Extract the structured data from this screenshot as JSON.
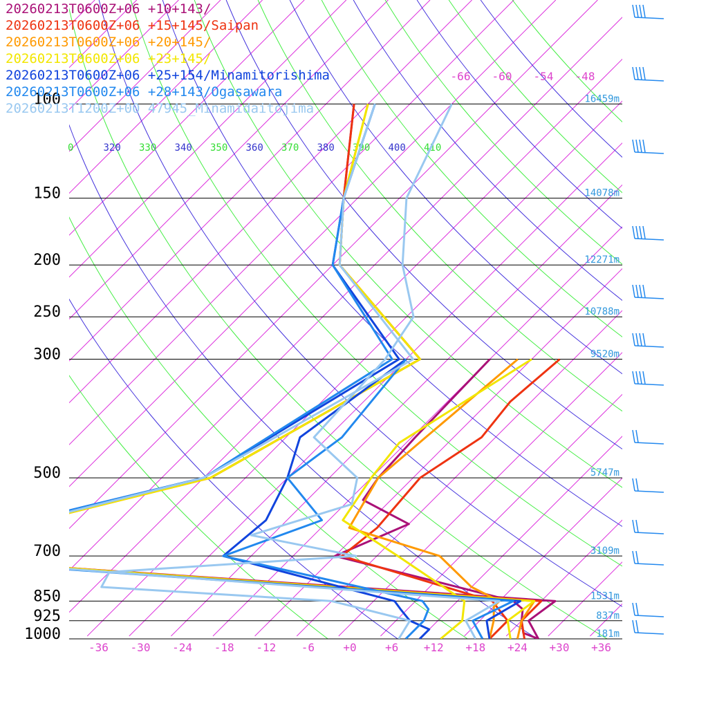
{
  "legend": [
    {
      "label": "20260213T0600Z+06 +10+143/",
      "color": "#aa1177"
    },
    {
      "label": "20260213T0600Z+06 +15+145/Saipan",
      "color": "#ee3311"
    },
    {
      "label": "20260213T0600Z+06 +20+145/",
      "color": "#ff9900"
    },
    {
      "label": "20260213T0600Z+06 +23+145/",
      "color": "#f2e600"
    },
    {
      "label": "20260213T0600Z+06 +25+154/Minamitorishima",
      "color": "#1144dd"
    },
    {
      "label": "20260213T0600Z+06 +28+143/Ogasawara",
      "color": "#2288ee"
    },
    {
      "label": "20260213T1200Z+00 47945_Minamidaitojima",
      "color": "#99c8f0"
    }
  ],
  "chart_data": {
    "type": "line",
    "chart_kind": "skew-T log-P sounding",
    "pressure_levels": [
      100,
      150,
      200,
      250,
      300,
      500,
      700,
      850,
      925,
      1000
    ],
    "pressure_labels": [
      "100",
      "150",
      "200",
      "250",
      "300",
      "500",
      "700",
      "850",
      "925",
      "1000"
    ],
    "height_labels": [
      "16459m",
      "14078m",
      "12271m",
      "10788m",
      "9520m",
      "5747m",
      "3109m",
      "1531m",
      "837m",
      "181m"
    ],
    "temperature_ticks": [
      "-36",
      "-30",
      "-24",
      "-18",
      "-12",
      "-6",
      "+0",
      "+6",
      "+12",
      "+18",
      "+24",
      "+30",
      "+36"
    ],
    "top_temperature_ticks": [
      "-66",
      "-60",
      "-54",
      "-48"
    ],
    "theta_labels": [
      "0",
      "320",
      "330",
      "340",
      "350",
      "360",
      "370",
      "380",
      "390",
      "400",
      "410"
    ],
    "xlim": [
      -40,
      40
    ],
    "ylim": [
      1000,
      100
    ],
    "series": [
      {
        "name": "20260213T0600Z+06 +10+143/",
        "color": "#aa1177",
        "temperature": [
          [
            1000,
            27
          ],
          [
            925,
            23
          ],
          [
            850,
            24
          ],
          [
            700,
            -77.5
          ],
          [
            500,
            -43
          ],
          [
            300,
            -30
          ],
          [
            200,
            -55
          ],
          [
            150,
            -64
          ],
          [
            100,
            -76
          ]
        ],
        "dewpoint": [
          [
            1000,
            27
          ],
          [
            975,
            24
          ],
          [
            925,
            22
          ],
          [
            880,
            20.5
          ],
          [
            850,
            18
          ],
          [
            700,
            -14
          ],
          [
            610,
            -8
          ],
          [
            550,
            -18
          ],
          [
            500,
            -19
          ],
          [
            420,
            -19.5
          ],
          [
            300,
            -20
          ]
        ]
      },
      {
        "name": "20260213T0600Z+06 +15+145/Saipan",
        "color": "#ee3311",
        "temperature": [
          [
            1000,
            25
          ],
          [
            925,
            22
          ],
          [
            850,
            22
          ],
          [
            700,
            -77
          ],
          [
            500,
            -43
          ],
          [
            300,
            -30
          ],
          [
            200,
            -55
          ],
          [
            150,
            -64
          ],
          [
            100,
            -76
          ]
        ],
        "dewpoint": [
          [
            1000,
            20
          ],
          [
            960,
            20
          ],
          [
            925,
            20
          ],
          [
            850,
            15
          ],
          [
            700,
            -13
          ],
          [
            620,
            -12
          ],
          [
            500,
            -13
          ],
          [
            420,
            -10
          ],
          [
            360,
            -11
          ],
          [
            300,
            -10
          ]
        ]
      },
      {
        "name": "20260213T0600Z+06 +20+145/",
        "color": "#ff9900",
        "temperature": [
          [
            1000,
            24
          ],
          [
            925,
            22
          ],
          [
            850,
            21
          ],
          [
            700,
            -77
          ],
          [
            500,
            -43
          ],
          [
            300,
            -30
          ],
          [
            200,
            -55
          ],
          [
            150,
            -64
          ],
          [
            100,
            -74
          ]
        ],
        "dewpoint": [
          [
            1000,
            20
          ],
          [
            925,
            18
          ],
          [
            870,
            16
          ],
          [
            850,
            16
          ],
          [
            800,
            10
          ],
          [
            700,
            1
          ],
          [
            620,
            -16
          ],
          [
            500,
            -19
          ],
          [
            420,
            -18
          ],
          [
            300,
            -16
          ]
        ]
      },
      {
        "name": "20260213T0600Z+06 +23+145/",
        "color": "#f2e600",
        "temperature": [
          [
            1000,
            23
          ],
          [
            925,
            20
          ],
          [
            850,
            21
          ],
          [
            700,
            -77
          ],
          [
            500,
            -43
          ],
          [
            300,
            -30
          ],
          [
            200,
            -55
          ],
          [
            150,
            -64
          ],
          [
            100,
            -74
          ]
        ],
        "dewpoint": [
          [
            1000,
            13
          ],
          [
            925,
            13.5
          ],
          [
            850,
            11
          ],
          [
            700,
            -5
          ],
          [
            600,
            -18
          ],
          [
            500,
            -20
          ],
          [
            430,
            -21
          ],
          [
            300,
            -14
          ]
        ]
      },
      {
        "name": "20260213T0600Z+06 +25+154/Minamitorishima",
        "color": "#1144dd",
        "temperature": [
          [
            1000,
            20
          ],
          [
            925,
            17
          ],
          [
            850,
            19
          ],
          [
            700,
            -79
          ],
          [
            500,
            -44
          ],
          [
            300,
            -33
          ],
          [
            200,
            -56
          ],
          [
            150,
            -64
          ],
          [
            100,
            -73
          ]
        ],
        "dewpoint": [
          [
            1000,
            10
          ],
          [
            960,
            10
          ],
          [
            925,
            6
          ],
          [
            880,
            3
          ],
          [
            850,
            1
          ],
          [
            700,
            -30
          ],
          [
            600,
            -29
          ],
          [
            500,
            -32
          ],
          [
            420,
            -36
          ],
          [
            300,
            -32
          ]
        ]
      },
      {
        "name": "20260213T0600Z+06 +28+143/Ogasawara",
        "color": "#2288ee",
        "temperature": [
          [
            1000,
            19
          ],
          [
            925,
            15
          ],
          [
            850,
            18
          ],
          [
            700,
            -79
          ],
          [
            500,
            -44
          ],
          [
            300,
            -34
          ],
          [
            200,
            -56
          ],
          [
            150,
            -64
          ],
          [
            100,
            -73
          ]
        ],
        "dewpoint": [
          [
            1000,
            8
          ],
          [
            925,
            8
          ],
          [
            880,
            7
          ],
          [
            850,
            5
          ],
          [
            700,
            -30
          ],
          [
            600,
            -21
          ],
          [
            500,
            -32
          ],
          [
            420,
            -30
          ],
          [
            300,
            -32
          ]
        ]
      },
      {
        "name": "20260213T1200Z+00 47945_Minamidaitojima",
        "color": "#99c8f0",
        "temperature": [
          [
            1000,
            18
          ],
          [
            925,
            14
          ],
          [
            850,
            16
          ],
          [
            700,
            -77
          ],
          [
            500,
            -44
          ],
          [
            300,
            -31
          ],
          [
            200,
            -55
          ],
          [
            150,
            -64
          ],
          [
            100,
            -73
          ]
        ],
        "dewpoint": [
          [
            1000,
            7
          ],
          [
            925,
            6
          ],
          [
            850,
            -8
          ],
          [
            800,
            -43
          ],
          [
            750,
            -44
          ],
          [
            700,
            -11
          ],
          [
            640,
            -29
          ],
          [
            560,
            -19
          ],
          [
            500,
            -22
          ],
          [
            420,
            -34
          ],
          [
            300,
            -35
          ],
          [
            250,
            -37
          ],
          [
            200,
            -46
          ],
          [
            150,
            -55
          ],
          [
            100,
            -62
          ]
        ]
      }
    ],
    "wind_barbs_color": "#2288ee",
    "grid": {
      "isotherms": "magenta",
      "dry_adiabats": "green/blue"
    }
  }
}
